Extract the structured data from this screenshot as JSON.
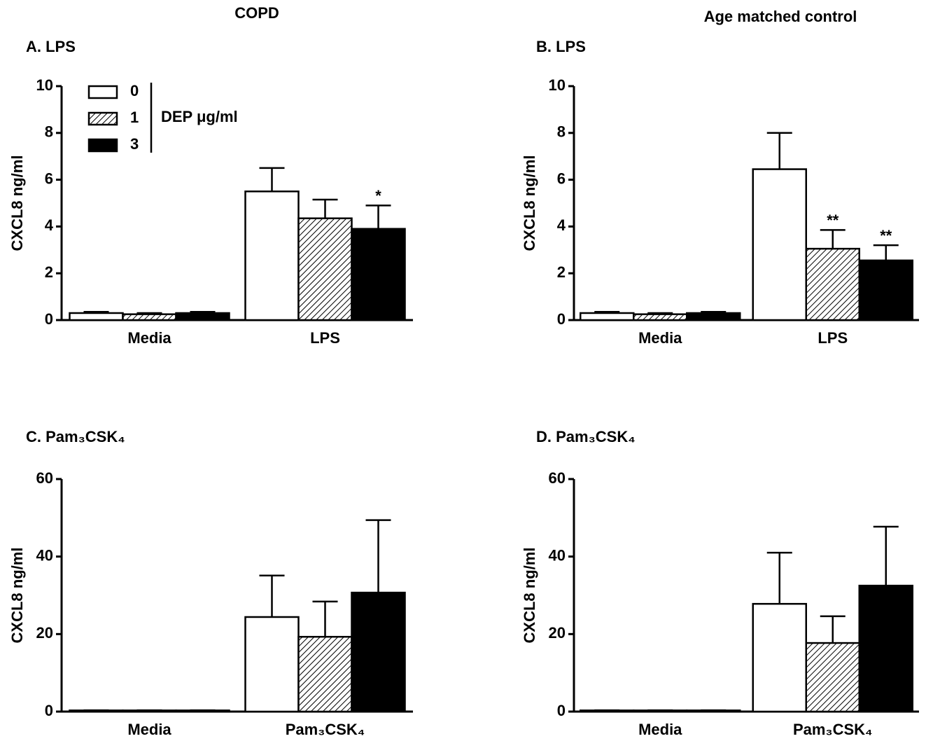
{
  "headers": [
    "COPD",
    "Age matched control"
  ],
  "chart_data": [
    {
      "type": "bar",
      "title": "A. LPS",
      "y_label": "CXCL8 ng/ml",
      "categories": [
        "Media",
        "LPS"
      ],
      "ylim": [
        0,
        10
      ],
      "yticks": [
        0,
        2,
        4,
        6,
        8,
        10
      ],
      "legend": true,
      "legend_title": "DEP μg/ml",
      "series": [
        {
          "name": "0",
          "color": "#ffffff",
          "hatch": false,
          "values": [
            0.3,
            5.5
          ],
          "errors": [
            0.05,
            1.0
          ],
          "significance": [
            null,
            null
          ]
        },
        {
          "name": "1",
          "color": "#ffffff",
          "hatch": true,
          "values": [
            0.25,
            4.35
          ],
          "errors": [
            0.05,
            0.8
          ],
          "significance": [
            null,
            null
          ]
        },
        {
          "name": "3",
          "color": "#000000",
          "hatch": false,
          "values": [
            0.3,
            3.9
          ],
          "errors": [
            0.05,
            1.0
          ],
          "significance": [
            null,
            "*"
          ]
        }
      ]
    },
    {
      "type": "bar",
      "title": "B. LPS",
      "y_label": "CXCL8 ng/ml",
      "categories": [
        "Media",
        "LPS"
      ],
      "ylim": [
        0,
        10
      ],
      "yticks": [
        0,
        2,
        4,
        6,
        8,
        10
      ],
      "legend": false,
      "series": [
        {
          "name": "0",
          "color": "#ffffff",
          "hatch": false,
          "values": [
            0.3,
            6.45
          ],
          "errors": [
            0.05,
            1.55
          ],
          "significance": [
            null,
            null
          ]
        },
        {
          "name": "1",
          "color": "#ffffff",
          "hatch": true,
          "values": [
            0.25,
            3.05
          ],
          "errors": [
            0.05,
            0.8
          ],
          "significance": [
            null,
            "**"
          ]
        },
        {
          "name": "3",
          "color": "#000000",
          "hatch": false,
          "values": [
            0.3,
            2.55
          ],
          "errors": [
            0.05,
            0.65
          ],
          "significance": [
            null,
            "**"
          ]
        }
      ]
    },
    {
      "type": "bar",
      "title": "C. Pam₃CSK₄",
      "y_label": "CXCL8 ng/ml",
      "categories": [
        "Media",
        "Pam₃CSK₄"
      ],
      "ylim": [
        0,
        60
      ],
      "yticks": [
        0,
        20,
        40,
        60
      ],
      "legend": false,
      "series": [
        {
          "name": "0",
          "color": "#ffffff",
          "hatch": false,
          "values": [
            0.3,
            24.4
          ],
          "errors": [
            0.05,
            10.7
          ],
          "significance": [
            null,
            null
          ]
        },
        {
          "name": "1",
          "color": "#ffffff",
          "hatch": true,
          "values": [
            0.3,
            19.3
          ],
          "errors": [
            0.05,
            9.1
          ],
          "significance": [
            null,
            null
          ]
        },
        {
          "name": "3",
          "color": "#000000",
          "hatch": false,
          "values": [
            0.3,
            30.7
          ],
          "errors": [
            0.05,
            18.7
          ],
          "significance": [
            null,
            null
          ]
        }
      ]
    },
    {
      "type": "bar",
      "title": "D. Pam₃CSK₄",
      "y_label": "CXCL8 ng/ml",
      "categories": [
        "Media",
        "Pam₃CSK₄"
      ],
      "ylim": [
        0,
        60
      ],
      "yticks": [
        0,
        20,
        40,
        60
      ],
      "legend": false,
      "series": [
        {
          "name": "0",
          "color": "#ffffff",
          "hatch": false,
          "values": [
            0.3,
            27.8
          ],
          "errors": [
            0.05,
            13.2
          ],
          "significance": [
            null,
            null
          ]
        },
        {
          "name": "1",
          "color": "#ffffff",
          "hatch": true,
          "values": [
            0.3,
            17.7
          ],
          "errors": [
            0.05,
            6.9
          ],
          "significance": [
            null,
            null
          ]
        },
        {
          "name": "3",
          "color": "#000000",
          "hatch": false,
          "values": [
            0.3,
            32.5
          ],
          "errors": [
            0.05,
            15.2
          ],
          "significance": [
            null,
            null
          ]
        }
      ]
    }
  ]
}
